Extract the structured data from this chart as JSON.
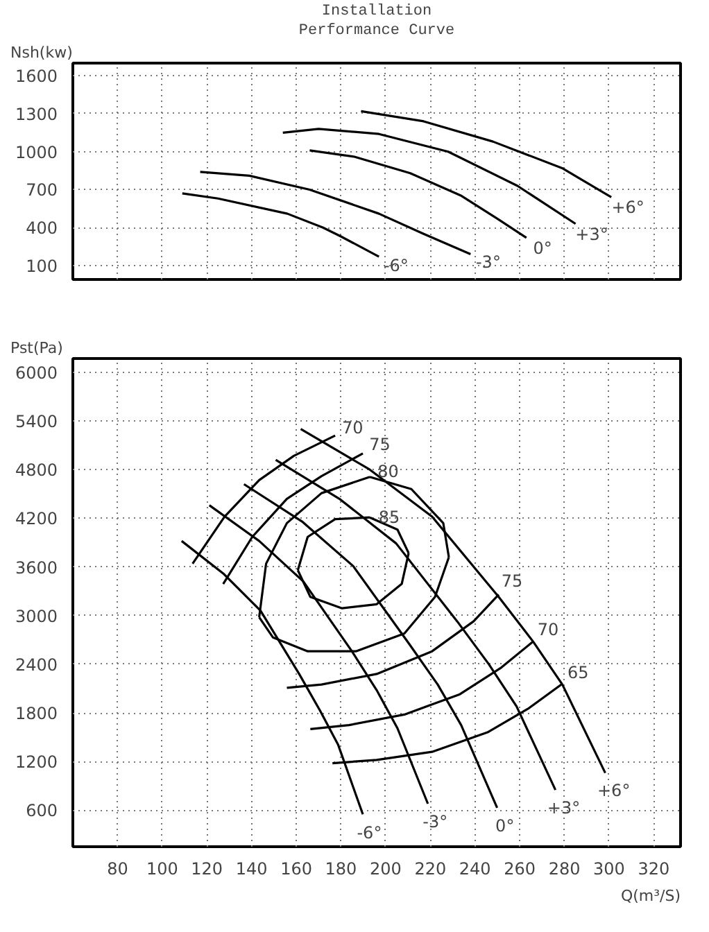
{
  "chart_data": [
    {
      "type": "line",
      "title": "Installation",
      "subtitle": "Performance Curve",
      "ylabel": "Nsh(kw)",
      "xlim": [
        60,
        332
      ],
      "ylim": [
        -10,
        1700
      ],
      "xticks": [
        80,
        100,
        120,
        140,
        160,
        180,
        200,
        220,
        240,
        260,
        280,
        300,
        320
      ],
      "yticks": [
        100,
        400,
        700,
        1000,
        1300,
        1600
      ],
      "tick_labels": "y",
      "grid": true,
      "marker": "none",
      "line_style": "solid",
      "legend": false,
      "series": [
        {
          "name": "-6°",
          "color": "#000000",
          "x": [
            109,
            125,
            156,
            172,
            180,
            197
          ],
          "values": [
            670,
            630,
            510,
            400,
            330,
            170
          ]
        },
        {
          "name": "-3°",
          "color": "#000000",
          "x": [
            117,
            139,
            166,
            197,
            217,
            238
          ],
          "values": [
            840,
            810,
            700,
            510,
            350,
            190
          ]
        },
        {
          "name": "0°",
          "color": "#000000",
          "x": [
            166,
            186,
            211,
            234,
            250,
            263
          ],
          "values": [
            1010,
            960,
            830,
            650,
            470,
            320
          ]
        },
        {
          "name": "+3°",
          "color": "#000000",
          "x": [
            154,
            170,
            197,
            228,
            259,
            285
          ],
          "values": [
            1150,
            1180,
            1140,
            1000,
            730,
            430
          ]
        },
        {
          "name": "+6°",
          "color": "#000000",
          "x": [
            189,
            217,
            248,
            279,
            301
          ],
          "values": [
            1320,
            1240,
            1080,
            870,
            640
          ]
        }
      ]
    },
    {
      "type": "line",
      "xlabel": "Q(m³/S)",
      "ylabel": "Pst(Pa)",
      "xlim": [
        60,
        332
      ],
      "ylim": [
        150,
        6170
      ],
      "xticks": [
        80,
        100,
        120,
        140,
        160,
        180,
        200,
        220,
        240,
        260,
        280,
        300,
        320
      ],
      "yticks": [
        600,
        1200,
        1800,
        2400,
        3000,
        3600,
        4200,
        4800,
        5400,
        6000
      ],
      "grid": true,
      "marker": "none",
      "line_style": "solid",
      "legend": false,
      "series": [
        {
          "name": "-6°",
          "color": "#000000",
          "x": [
            108.7,
            127.3,
            144.0,
            161.3,
            170.6,
            178.7,
            189.8
          ],
          "values": [
            3920,
            3520,
            3060,
            2280,
            1830,
            1410,
            550
          ]
        },
        {
          "name": "-3°",
          "color": "#000000",
          "x": [
            121.1,
            143.4,
            163.2,
            184.9,
            196.0,
            205.3,
            218.9
          ],
          "values": [
            4360,
            3920,
            3420,
            2560,
            2080,
            1610,
            680
          ]
        },
        {
          "name": "0°",
          "color": "#000000",
          "x": [
            136.6,
            162.6,
            185.5,
            210.3,
            223.3,
            233.8,
            249.9
          ],
          "values": [
            4620,
            4160,
            3610,
            2660,
            2150,
            1650,
            630
          ]
        },
        {
          "name": "+3°",
          "color": "#000000",
          "x": [
            150.8,
            179.3,
            204.7,
            232.0,
            246.2,
            258.6,
            276.0
          ],
          "values": [
            4920,
            4440,
            3890,
            2930,
            2400,
            1880,
            850
          ]
        },
        {
          "name": "+6°",
          "color": "#000000",
          "x": [
            162.0,
            192.9,
            220.8,
            250.6,
            266.0,
            279.1,
            298.3
          ],
          "values": [
            5300,
            4800,
            4220,
            3230,
            2680,
            2150,
            1060
          ]
        },
        {
          "name": "70",
          "color": "#000000",
          "x": [
            113.6,
            127.9,
            143.4,
            158.9,
            177.4
          ],
          "values": [
            3640,
            4220,
            4670,
            4970,
            5220
          ]
        },
        {
          "name": "75",
          "color": "#000000",
          "x": [
            127.3,
            140.3,
            155.8,
            171.3,
            189.8
          ],
          "values": [
            3390,
            3970,
            4440,
            4720,
            5000
          ]
        },
        {
          "name": "80",
          "color": "#000000",
          "x": [
            143.4,
            146.5,
            155.8,
            171.3,
            192.9
          ],
          "values": [
            2980,
            3640,
            4140,
            4510,
            4710
          ]
        },
        {
          "color": "#000000",
          "x": [
            192.9,
            211.5,
            225.8,
            228.3
          ],
          "values": [
            4710,
            4560,
            4140,
            3720
          ]
        },
        {
          "color": "#000000",
          "x": [
            228.3,
            222.1,
            208.4,
            186.7,
            165.1,
            149.6,
            143.4
          ],
          "values": [
            3720,
            3230,
            2780,
            2560,
            2560,
            2730,
            2980
          ]
        },
        {
          "name": "85",
          "color": "#000000",
          "x": [
            160.7,
            165.1,
            177.4,
            192.9
          ],
          "values": [
            3560,
            3970,
            4190,
            4210
          ]
        },
        {
          "color": "#000000",
          "x": [
            192.9,
            205.3,
            210.3
          ],
          "values": [
            4210,
            4060,
            3770
          ]
        },
        {
          "color": "#000000",
          "x": [
            210.3,
            207.2,
            196.0,
            180.5,
            166.3,
            160.7
          ],
          "values": [
            3770,
            3390,
            3140,
            3090,
            3230,
            3560
          ]
        },
        {
          "name": "75",
          "color": "#000000",
          "x": [
            155.8,
            171.3,
            196.0,
            220.8,
            239.4,
            250.6
          ],
          "values": [
            2110,
            2150,
            2280,
            2560,
            2930,
            3260
          ]
        },
        {
          "name": "70",
          "color": "#000000",
          "x": [
            166.3,
            183.6,
            208.4,
            233.2,
            251.8,
            266.0
          ],
          "values": [
            1600,
            1650,
            1780,
            2030,
            2360,
            2680
          ]
        },
        {
          "name": "65",
          "color": "#000000",
          "x": [
            176.2,
            196.0,
            220.8,
            245.6,
            264.2,
            279.1
          ],
          "values": [
            1180,
            1220,
            1320,
            1560,
            1860,
            2160
          ]
        }
      ]
    }
  ]
}
